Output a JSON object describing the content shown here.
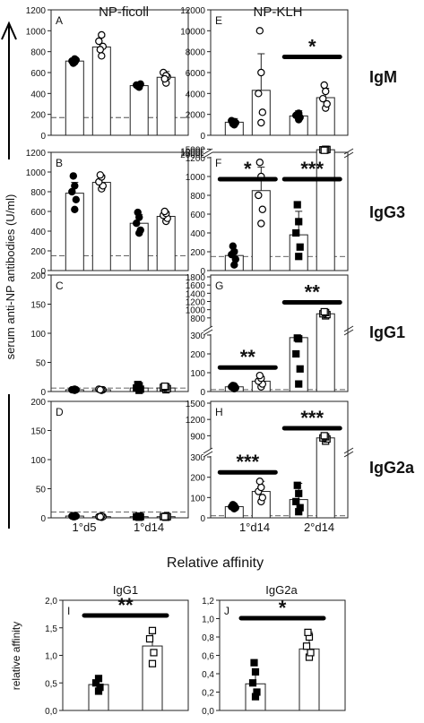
{
  "column_titles": [
    "NP-ficoll",
    "NP-KLH"
  ],
  "row_labels": [
    "IgM",
    "IgG3",
    "IgG1",
    "IgG2a"
  ],
  "y_axis_label": "serum anti-NP antibodies (U/ml)",
  "x_labels_left": [
    "1°d5",
    "1°d14"
  ],
  "x_labels_right": [
    "1°d14",
    "2°d14"
  ],
  "section_title": "Relative affinity",
  "chart_data": [
    {
      "panel": "A",
      "type": "bar",
      "isotype": "IgM",
      "immunogen": "NP-ficoll",
      "categories": [
        "1°d5",
        "1°d14"
      ],
      "ylim": [
        0,
        1200
      ],
      "yticks": [
        0,
        200,
        400,
        600,
        800,
        1000,
        1200
      ],
      "series": [
        {
          "filled": true,
          "values": [
            710,
            475
          ],
          "sd": [
            25,
            20
          ]
        },
        {
          "filled": false,
          "values": [
            845,
            555
          ],
          "sd": [
            100,
            55
          ]
        }
      ],
      "points": [
        [
          [
            700,
            720,
            710,
            730,
            690
          ],
          [
            470,
            490,
            480,
            460,
            470
          ]
        ],
        [
          [
            760,
            850,
            900,
            960,
            820
          ],
          [
            500,
            560,
            600,
            570,
            540
          ]
        ]
      ],
      "dashed_line": 170
    },
    {
      "panel": "E",
      "type": "bar",
      "isotype": "IgM",
      "immunogen": "NP-KLH",
      "categories": [
        "1°d14",
        "2°d14"
      ],
      "ylim": [
        0,
        12000
      ],
      "yticks": [
        0,
        2000,
        4000,
        6000,
        8000,
        10000,
        12000
      ],
      "series": [
        {
          "filled": true,
          "values": [
            1250,
            1850
          ],
          "sd": [
            350,
            500
          ]
        },
        {
          "filled": false,
          "values": [
            4300,
            3600
          ],
          "sd": [
            3500,
            900
          ]
        }
      ],
      "points": [
        [
          [
            1000,
            1200,
            1400,
            1300,
            1100
          ],
          [
            1500,
            1700,
            1900,
            2100,
            2000
          ]
        ],
        [
          [
            1200,
            2200,
            4000,
            6000,
            10000
          ],
          [
            2600,
            3000,
            3500,
            4200,
            4800
          ]
        ]
      ],
      "dashed_line": 0,
      "significance": [
        {
          "group": 1,
          "label": "*"
        }
      ]
    },
    {
      "panel": "B",
      "type": "bar",
      "isotype": "IgG3",
      "immunogen": "NP-ficoll",
      "categories": [
        "1°d5",
        "1°d14"
      ],
      "ylim": [
        0,
        1200
      ],
      "yticks": [
        0,
        200,
        400,
        600,
        800,
        1000,
        1200
      ],
      "series": [
        {
          "filled": true,
          "values": [
            785,
            480
          ],
          "sd": [
            110,
            90
          ]
        },
        {
          "filled": false,
          "values": [
            895,
            550
          ],
          "sd": [
            70,
            45
          ]
        }
      ],
      "points": [
        [
          [
            620,
            720,
            800,
            860,
            960
          ],
          [
            380,
            410,
            480,
            540,
            590
          ]
        ],
        [
          [
            830,
            860,
            900,
            950,
            970
          ],
          [
            500,
            530,
            560,
            580,
            600
          ]
        ]
      ],
      "dashed_line": 150
    },
    {
      "panel": "F",
      "type": "bar",
      "isotype": "IgG3",
      "immunogen": "NP-KLH",
      "y_axis_break": true,
      "categories": [
        "1°d14",
        "2°d14"
      ],
      "yticks_lower": [
        0,
        200,
        400,
        600,
        800,
        1000,
        1200
      ],
      "yticks_upper": [
        5000,
        10000,
        15000,
        20000
      ],
      "series": [
        {
          "filled": true,
          "values": [
            160,
            380
          ],
          "sd": [
            60,
            250
          ]
        },
        {
          "filled": false,
          "values": [
            850,
            6800
          ],
          "sd": [
            250,
            1500
          ]
        }
      ],
      "points": [
        [
          [
            60,
            120,
            170,
            200,
            260
          ],
          [
            150,
            250,
            400,
            520,
            700
          ]
        ],
        [
          [
            500,
            650,
            800,
            1000,
            1150
          ],
          [
            5500,
            6000,
            6800,
            7600,
            8500
          ]
        ]
      ],
      "dashed_line": 150,
      "significance": [
        {
          "group": 0,
          "label": "*"
        },
        {
          "group": 1,
          "label": "***"
        }
      ]
    },
    {
      "panel": "C",
      "type": "bar",
      "isotype": "IgG1",
      "immunogen": "NP-ficoll",
      "categories": [
        "1°d5",
        "1°d14"
      ],
      "ylim": [
        0,
        200
      ],
      "yticks": [
        0,
        50,
        100,
        150,
        200
      ],
      "series": [
        {
          "filled": true,
          "values": [
            3,
            6
          ],
          "sd": [
            1,
            5
          ]
        },
        {
          "filled": false,
          "values": [
            3,
            6
          ],
          "sd": [
            1,
            3
          ]
        }
      ],
      "points": [
        [
          [
            2,
            3,
            3,
            4,
            3
          ],
          [
            2,
            4,
            6,
            10,
            12
          ]
        ],
        [
          [
            2,
            3,
            4,
            3,
            3
          ],
          [
            3,
            5,
            7,
            8,
            9
          ]
        ]
      ],
      "dashed_line": 6
    },
    {
      "panel": "G",
      "type": "bar",
      "isotype": "IgG1",
      "immunogen": "NP-KLH",
      "y_axis_break": true,
      "categories": [
        "1°d14",
        "2°d14"
      ],
      "yticks_lower": [
        0,
        100,
        200,
        300
      ],
      "yticks_upper": [
        800,
        1000,
        1200,
        1400,
        1600,
        1800
      ],
      "series": [
        {
          "filled": true,
          "values": [
            25,
            320
          ],
          "sd": [
            8,
            20
          ]
        },
        {
          "filled": false,
          "values": [
            55,
            900
          ],
          "sd": [
            25,
            60
          ]
        }
      ],
      "points": [
        [
          [
            15,
            20,
            25,
            30,
            32
          ],
          [
            40,
            120,
            200,
            280,
            310
          ]
        ],
        [
          [
            25,
            40,
            55,
            70,
            85
          ],
          [
            850,
            880,
            900,
            930,
            950
          ]
        ]
      ],
      "dashed_line": 10,
      "significance": [
        {
          "group": 0,
          "label": "**"
        },
        {
          "group": 1,
          "label": "**"
        }
      ]
    },
    {
      "panel": "D",
      "type": "bar",
      "isotype": "IgG2a",
      "immunogen": "NP-ficoll",
      "categories": [
        "1°d5",
        "1°d14"
      ],
      "ylim": [
        0,
        200
      ],
      "yticks": [
        0,
        50,
        100,
        150,
        200
      ],
      "series": [
        {
          "filled": true,
          "values": [
            3,
            2
          ],
          "sd": [
            1,
            1
          ]
        },
        {
          "filled": false,
          "values": [
            2,
            2
          ],
          "sd": [
            1,
            1
          ]
        }
      ],
      "points": [
        [
          [
            2,
            3,
            3,
            4,
            2
          ],
          [
            1,
            2,
            2,
            3,
            2
          ]
        ],
        [
          [
            1,
            2,
            2,
            3,
            2
          ],
          [
            1,
            2,
            2,
            3,
            2
          ]
        ]
      ],
      "dashed_line": 10
    },
    {
      "panel": "H",
      "type": "bar",
      "isotype": "IgG2a",
      "immunogen": "NP-KLH",
      "y_axis_break": true,
      "categories": [
        "1°d14",
        "2°d14"
      ],
      "yticks_lower": [
        0,
        100,
        200,
        300
      ],
      "yticks_upper": [
        900,
        1200,
        1500
      ],
      "series": [
        {
          "filled": true,
          "values": [
            55,
            90
          ],
          "sd": [
            8,
            80
          ]
        },
        {
          "filled": false,
          "values": [
            130,
            860
          ],
          "sd": [
            50,
            60
          ]
        }
      ],
      "points": [
        [
          [
            45,
            50,
            55,
            60,
            65
          ],
          [
            30,
            50,
            80,
            120,
            160
          ]
        ],
        [
          [
            80,
            100,
            130,
            150,
            180
          ],
          [
            800,
            840,
            860,
            880,
            900
          ]
        ]
      ],
      "dashed_line": 10,
      "significance": [
        {
          "group": 0,
          "label": "***"
        },
        {
          "group": 1,
          "label": "***"
        }
      ]
    },
    {
      "panel": "I",
      "type": "bar",
      "title": "IgG1",
      "ylabel": "relative affinity",
      "ylim": [
        0,
        2.0
      ],
      "yticks": [
        "0,0",
        "0,5",
        "1,0",
        "1,5",
        "2,0"
      ],
      "series": [
        {
          "filled": true,
          "values": [
            0.47
          ],
          "sd": [
            0.12
          ]
        },
        {
          "filled": false,
          "values": [
            1.17
          ],
          "sd": [
            0.25
          ]
        }
      ],
      "points": [
        [
          [
            0.35,
            0.42,
            0.5,
            0.58
          ]
        ],
        [
          [
            0.85,
            1.05,
            1.3,
            1.45
          ]
        ]
      ],
      "significance": [
        {
          "label": "**"
        }
      ]
    },
    {
      "panel": "J",
      "type": "bar",
      "title": "IgG2a",
      "ylim": [
        0,
        1.2
      ],
      "yticks": [
        "0,0",
        "0,2",
        "0,4",
        "0,6",
        "0,8",
        "1,0",
        "1,2"
      ],
      "series": [
        {
          "filled": true,
          "values": [
            0.29
          ],
          "sd": [
            0.1
          ]
        },
        {
          "filled": false,
          "values": [
            0.67
          ],
          "sd": [
            0.18
          ]
        }
      ],
      "points": [
        [
          [
            0.15,
            0.2,
            0.3,
            0.42,
            0.52
          ]
        ],
        [
          [
            0.58,
            0.63,
            0.7,
            0.8,
            0.85
          ]
        ]
      ],
      "significance": [
        {
          "label": "*"
        }
      ]
    }
  ]
}
